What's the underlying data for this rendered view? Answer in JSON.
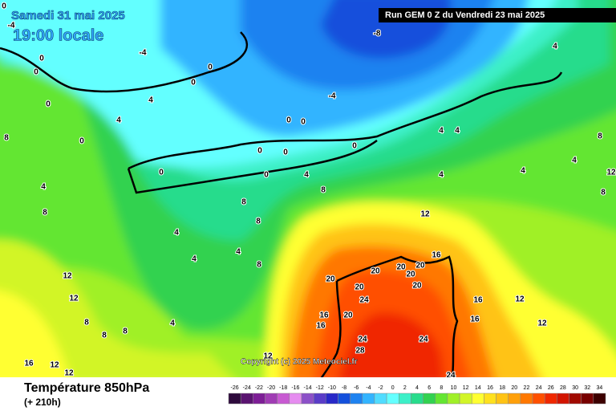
{
  "header": {
    "date": "Samedi 31 mai 2025",
    "time": "19:00 locale",
    "run": "Run GEM 0 Z du Vendredi 23 mai 2025"
  },
  "copyright": "Copyright (c) 2025 Meteociel.fr",
  "footer": {
    "title": "Température 850hPa",
    "lead": "(+ 210h)"
  },
  "legend": {
    "labels": [
      -26,
      -24,
      -22,
      -20,
      -18,
      -16,
      -14,
      -12,
      -10,
      -8,
      -6,
      -4,
      -2,
      0,
      2,
      4,
      6,
      8,
      10,
      12,
      14,
      16,
      18,
      20,
      22,
      24,
      26,
      28,
      30,
      32,
      34
    ],
    "colors": [
      "#2d0a3c",
      "#5a1470",
      "#7d1e96",
      "#a03cb4",
      "#c85ad2",
      "#e68cf0",
      "#8c50c8",
      "#5a3cc8",
      "#2828c8",
      "#1450dc",
      "#1e82f0",
      "#32b4ff",
      "#50dcff",
      "#64ffff",
      "#3cf0c8",
      "#28dc8c",
      "#32d250",
      "#64e632",
      "#a0f028",
      "#d2f528",
      "#ffff32",
      "#ffe11e",
      "#ffc314",
      "#ffa00a",
      "#ff7800",
      "#ff5000",
      "#f02800",
      "#d21400",
      "#a00a00",
      "#780000",
      "#3c0000"
    ]
  },
  "map_labels": [
    0,
    -4,
    0,
    0,
    -4,
    0,
    0,
    -8,
    4,
    4,
    -4,
    0,
    4,
    0,
    0,
    0,
    0,
    0,
    0,
    0,
    0,
    4,
    4,
    4,
    4,
    4,
    4,
    8,
    12,
    8,
    4,
    8,
    8,
    8,
    12,
    4,
    4,
    4,
    8,
    8,
    12,
    12,
    8,
    8,
    8,
    4,
    16,
    12,
    12,
    20,
    20,
    24,
    20,
    16,
    16,
    20,
    20,
    20,
    16,
    20,
    20,
    24,
    28,
    24,
    16,
    16,
    12,
    12,
    24,
    12,
    8
  ]
}
